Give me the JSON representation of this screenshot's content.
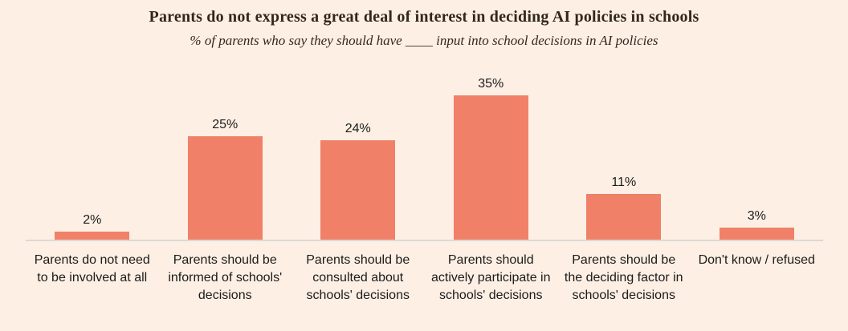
{
  "chart_data": {
    "type": "bar",
    "title": "Parents do not express a great deal of interest in deciding AI policies in schools",
    "subtitle": "% of parents who say they should have ____ input into school decisions in AI policies",
    "categories": [
      "Parents do not need\nto be involved at all",
      "Parents should be\ninformed of schools'\ndecisions",
      "Parents should be\nconsulted about\nschools' decisions",
      "Parents should\nactively participate in\nschools' decisions",
      "Parents should be\nthe deciding factor in\nschools' decisions",
      "Don't know / refused"
    ],
    "values": [
      2,
      25,
      24,
      35,
      11,
      3
    ],
    "value_label_suffix": "%",
    "xlabel": "",
    "ylabel": "",
    "ylim": [
      0,
      38
    ],
    "grid": false,
    "legend": "none",
    "colors": {
      "background": "#fdefe4",
      "bar": "#f08068",
      "axis_line": "#ddd8d2",
      "title_text": "#35261a",
      "label_text": "#1c1b1a"
    }
  }
}
